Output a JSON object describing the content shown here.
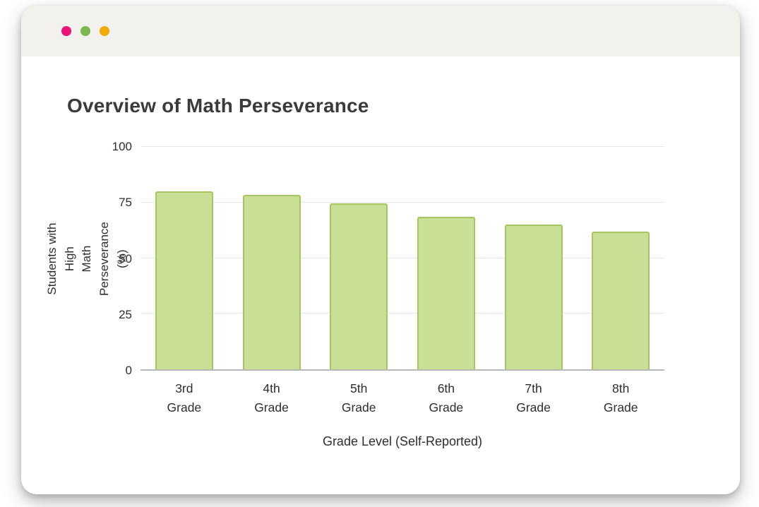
{
  "window": {
    "controls": [
      {
        "name": "close",
        "color": "#ed1278"
      },
      {
        "name": "minimize",
        "color": "#7cb84e"
      },
      {
        "name": "maximize",
        "color": "#f0ac05"
      }
    ],
    "titlebar_color": "#f2f1ee"
  },
  "title": "Overview of Math Perseverance",
  "chart_data": {
    "type": "bar",
    "title": "Overview of Math Perseverance",
    "categories": [
      "3rd Grade",
      "4th Grade",
      "5th Grade",
      "6th Grade",
      "7th Grade",
      "8th Grade"
    ],
    "values": [
      80,
      78.5,
      74.5,
      68.5,
      65,
      62
    ],
    "xlabel": "Grade Level (Self-Reported)",
    "ylabel": "Students with High Math Perseverance (%)",
    "ylabel_lines": [
      "Students with High",
      "Math Perseverance (%)"
    ],
    "ylim": [
      0,
      100
    ],
    "yticks": [
      0,
      25,
      50,
      75,
      100
    ],
    "grid": "horizontal",
    "legend": "none",
    "bar_fill": "#c9df95",
    "bar_border": "#a4c55f"
  }
}
